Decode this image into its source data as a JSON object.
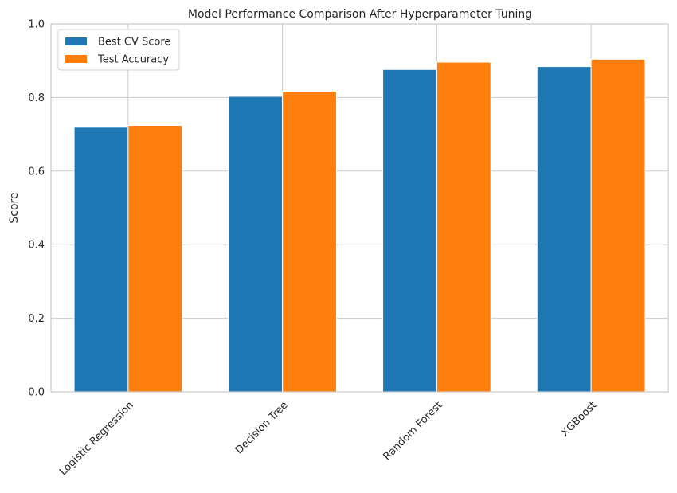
{
  "chart_data": {
    "type": "bar",
    "title": "Model Performance Comparison After Hyperparameter Tuning",
    "xlabel": "",
    "ylabel": "Score",
    "ylim": [
      0,
      1.0
    ],
    "yticks": [
      "0.0",
      "0.2",
      "0.4",
      "0.6",
      "0.8",
      "1.0"
    ],
    "categories": [
      "Logistic Regression",
      "Decision Tree",
      "Random Forest",
      "XGBoost"
    ],
    "series": [
      {
        "name": "Best CV Score",
        "values": [
          0.719,
          0.803,
          0.876,
          0.884
        ],
        "color": "#1f77b4"
      },
      {
        "name": "Test Accuracy",
        "values": [
          0.724,
          0.817,
          0.896,
          0.904
        ],
        "color": "#ff7f0e"
      }
    ],
    "grid": true,
    "legend_position": "top-left"
  }
}
